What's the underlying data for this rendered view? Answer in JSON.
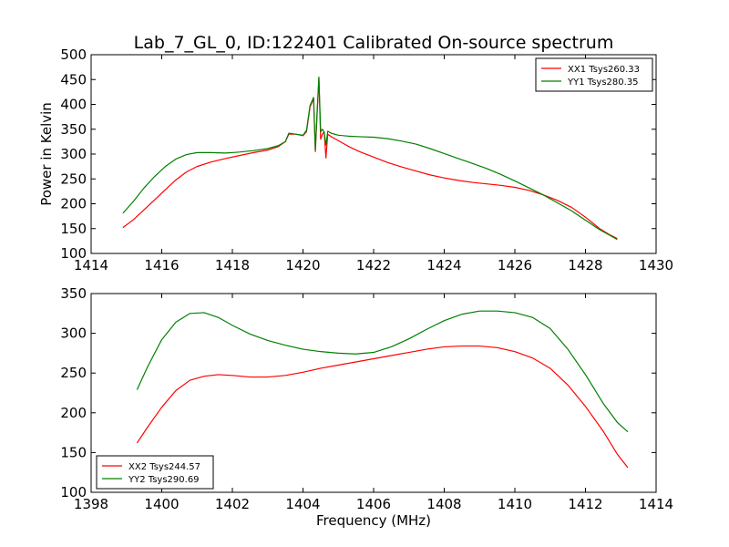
{
  "chart_data": [
    {
      "type": "line",
      "title": "Lab_7_GL_0, ID:122401 Calibrated On-source spectrum",
      "xlabel": "",
      "ylabel": "Power in Kelvin",
      "xlim": [
        1414,
        1430
      ],
      "ylim": [
        100,
        500
      ],
      "xticks": [
        1414,
        1416,
        1418,
        1420,
        1422,
        1424,
        1426,
        1428,
        1430
      ],
      "yticks": [
        100,
        150,
        200,
        250,
        300,
        350,
        400,
        450,
        500
      ],
      "grid": false,
      "legend_position": "top-right",
      "series": [
        {
          "name": "XX1 Tsys260.33",
          "color": "#ff0000",
          "x": [
            1414.9,
            1415.2,
            1415.5,
            1415.8,
            1416.1,
            1416.4,
            1416.7,
            1417.0,
            1417.4,
            1417.8,
            1418.2,
            1418.6,
            1419.0,
            1419.3,
            1419.5,
            1419.6,
            1419.8,
            1420.0,
            1420.1,
            1420.2,
            1420.3,
            1420.35,
            1420.4,
            1420.45,
            1420.5,
            1420.55,
            1420.6,
            1420.65,
            1420.7,
            1420.8,
            1421.0,
            1421.3,
            1421.6,
            1422.0,
            1422.4,
            1422.8,
            1423.2,
            1423.6,
            1424.0,
            1424.4,
            1424.8,
            1425.2,
            1425.6,
            1426.0,
            1426.4,
            1426.8,
            1427.2,
            1427.6,
            1428.0,
            1428.4,
            1428.7,
            1428.9
          ],
          "values": [
            152,
            168,
            188,
            208,
            228,
            248,
            264,
            275,
            284,
            291,
            297,
            303,
            308,
            315,
            325,
            340,
            340,
            337,
            345,
            395,
            412,
            305,
            380,
            452,
            330,
            340,
            345,
            292,
            340,
            335,
            327,
            315,
            305,
            294,
            283,
            274,
            266,
            258,
            252,
            247,
            243,
            240,
            237,
            233,
            227,
            218,
            207,
            193,
            173,
            150,
            137,
            130
          ]
        },
        {
          "name": "YY1 Tsys280.35",
          "color": "#008000",
          "x": [
            1414.9,
            1415.2,
            1415.5,
            1415.8,
            1416.1,
            1416.4,
            1416.7,
            1417.0,
            1417.4,
            1417.8,
            1418.2,
            1418.6,
            1419.0,
            1419.3,
            1419.5,
            1419.6,
            1419.8,
            1420.0,
            1420.1,
            1420.2,
            1420.3,
            1420.35,
            1420.4,
            1420.45,
            1420.5,
            1420.55,
            1420.6,
            1420.65,
            1420.7,
            1420.8,
            1421.0,
            1421.3,
            1421.6,
            1422.0,
            1422.4,
            1422.8,
            1423.2,
            1423.6,
            1424.0,
            1424.4,
            1424.8,
            1425.2,
            1425.6,
            1426.0,
            1426.4,
            1426.8,
            1427.2,
            1427.6,
            1428.0,
            1428.4,
            1428.7,
            1428.9
          ],
          "values": [
            181,
            205,
            232,
            255,
            275,
            290,
            299,
            303,
            303,
            302,
            304,
            307,
            311,
            317,
            325,
            342,
            340,
            338,
            348,
            398,
            414,
            308,
            385,
            455,
            345,
            350,
            344,
            318,
            346,
            342,
            338,
            336,
            335,
            334,
            331,
            326,
            320,
            311,
            301,
            291,
            281,
            271,
            259,
            246,
            232,
            218,
            202,
            186,
            167,
            148,
            136,
            128
          ]
        }
      ]
    },
    {
      "type": "line",
      "title": "",
      "xlabel": "Frequency (MHz)",
      "ylabel": "",
      "xlim": [
        1398,
        1414
      ],
      "ylim": [
        100,
        350
      ],
      "xticks": [
        1398,
        1400,
        1402,
        1404,
        1406,
        1408,
        1410,
        1412,
        1414
      ],
      "yticks": [
        100,
        150,
        200,
        250,
        300,
        350
      ],
      "grid": false,
      "legend_position": "bottom-left",
      "series": [
        {
          "name": "XX2 Tsys244.57",
          "color": "#ff0000",
          "x": [
            1399.3,
            1399.6,
            1400.0,
            1400.4,
            1400.8,
            1401.2,
            1401.6,
            1402.0,
            1402.5,
            1403.0,
            1403.5,
            1404.0,
            1404.5,
            1405.0,
            1405.5,
            1406.0,
            1406.5,
            1407.0,
            1407.5,
            1408.0,
            1408.5,
            1409.0,
            1409.5,
            1410.0,
            1410.5,
            1411.0,
            1411.5,
            1412.0,
            1412.5,
            1412.9,
            1413.2
          ],
          "values": [
            162,
            182,
            207,
            228,
            241,
            246,
            248,
            247,
            245,
            245,
            247,
            251,
            256,
            260,
            264,
            268,
            272,
            276,
            280,
            283,
            284,
            284,
            282,
            277,
            269,
            256,
            235,
            208,
            177,
            148,
            131
          ]
        },
        {
          "name": "YY2 Tsys290.69",
          "color": "#008000",
          "x": [
            1399.3,
            1399.6,
            1400.0,
            1400.4,
            1400.8,
            1401.2,
            1401.6,
            1402.0,
            1402.5,
            1403.0,
            1403.5,
            1404.0,
            1404.5,
            1405.0,
            1405.5,
            1406.0,
            1406.5,
            1407.0,
            1407.5,
            1408.0,
            1408.5,
            1409.0,
            1409.5,
            1410.0,
            1410.5,
            1411.0,
            1411.5,
            1412.0,
            1412.5,
            1412.9,
            1413.2
          ],
          "values": [
            229,
            258,
            292,
            314,
            325,
            326,
            320,
            310,
            299,
            291,
            285,
            280,
            277,
            275,
            274,
            276,
            283,
            293,
            305,
            316,
            324,
            328,
            328,
            326,
            320,
            306,
            280,
            248,
            212,
            188,
            176
          ]
        }
      ]
    }
  ]
}
